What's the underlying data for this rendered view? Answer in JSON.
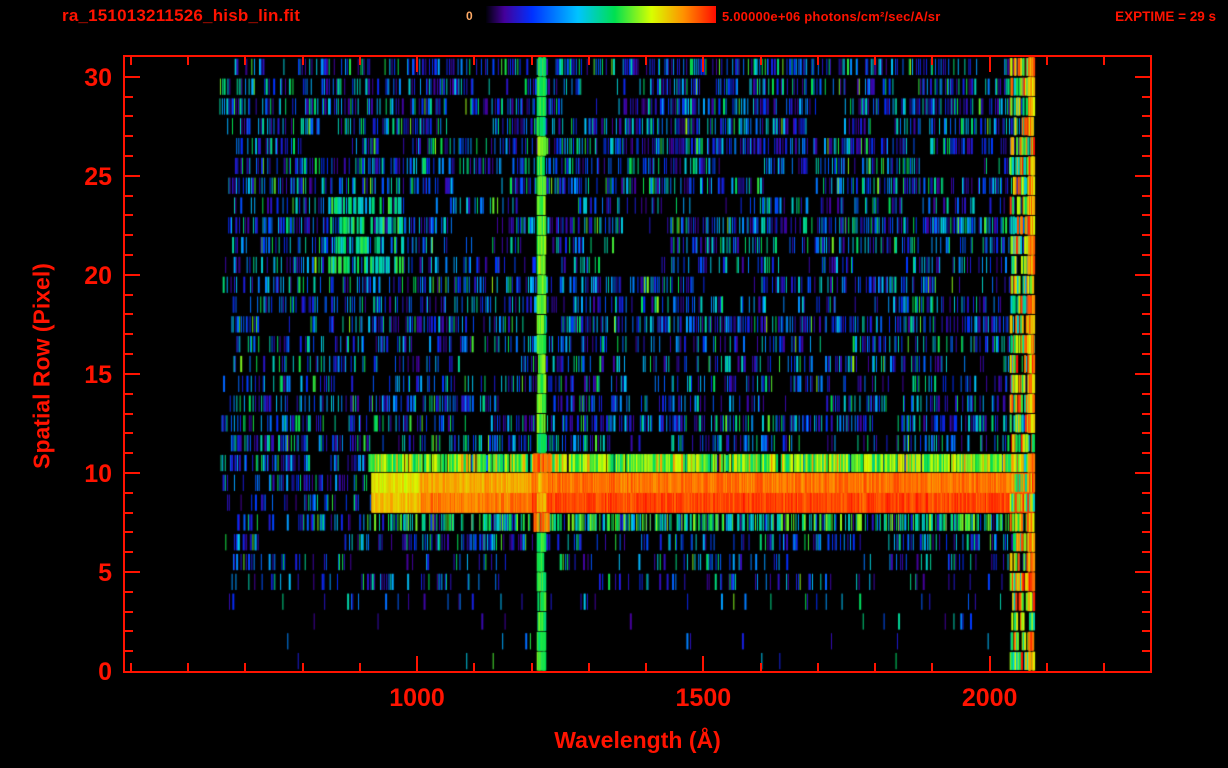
{
  "colors": {
    "background": "#000000",
    "accent_red": "#ff1300",
    "colorbar_zero_label": "#ffaa66"
  },
  "header": {
    "filename": "ra_151013211526_hisb_lin.fit",
    "exptime": "EXPTIME = 29 s",
    "colorbar": {
      "min_label": "0",
      "max_label": "5.00000e+06 photons/cm²/sec/A/sr"
    }
  },
  "chart_data": {
    "type": "heatmap",
    "title": "ra_151013211526_hisb_lin.fit",
    "xlabel": "Wavelength (Å)",
    "ylabel": "Spatial Row (Pixel)",
    "x_axis_range": [
      490,
      2280
    ],
    "y_axis_range": [
      0,
      31
    ],
    "data_wavelength_range": [
      668,
      2076
    ],
    "x_major_ticks": [
      1000,
      1500,
      2000
    ],
    "x_minor_tick_step": 100,
    "y_major_ticks": [
      0,
      5,
      10,
      15,
      20,
      25,
      30
    ],
    "y_minor_tick_step": 1,
    "spatial_rows": 31,
    "grid": false,
    "colorbar": {
      "min": 0,
      "max": 5000000,
      "units": "photons/cm²/sec/A/sr",
      "position": "top-center"
    },
    "colormap_stops": [
      {
        "t": 0.0,
        "color": "#000008"
      },
      {
        "t": 0.08,
        "color": "#44009a"
      },
      {
        "t": 0.2,
        "color": "#0030ff"
      },
      {
        "t": 0.4,
        "color": "#00c4ff"
      },
      {
        "t": 0.56,
        "color": "#00e050"
      },
      {
        "t": 0.72,
        "color": "#d8ff00"
      },
      {
        "t": 0.86,
        "color": "#ff9000"
      },
      {
        "t": 1.0,
        "color": "#ff0c00"
      }
    ],
    "features": {
      "target_spectrum_band": {
        "rows": [
          8,
          9
        ],
        "wavelength_start": 920,
        "wavelength_end": 2076,
        "level": "saturated-red-continuum"
      },
      "band_upper_edge": {
        "row": 10,
        "wavelength_start": 915,
        "wavelength_end": 2076,
        "level": "green-yellow"
      },
      "band_lower_edge": {
        "row": 7,
        "wavelength_start": 925,
        "wavelength_end": 2076,
        "level": "green"
      },
      "airglow_emission_line": {
        "wavelength": 1216,
        "width": 14,
        "level": "green-vertical-line-all-rows"
      },
      "airglow_red_knot": {
        "rows": [
          7,
          10
        ],
        "wavelength_start": 1202,
        "wavelength_end": 1232,
        "level": "red"
      },
      "detector_red_edge": {
        "wavelength_start": 2035,
        "wavelength_end": 2076,
        "level": "mixed-bright"
      },
      "diffuse_green_patch": {
        "rows": [
          20,
          23
        ],
        "wavelength_start": 845,
        "wavelength_end": 975,
        "level": "green"
      },
      "sparse_bottom_rows": [
        0,
        4
      ]
    },
    "noise": {
      "seed": 20151013,
      "character": "blue-cyan speckle background"
    }
  }
}
